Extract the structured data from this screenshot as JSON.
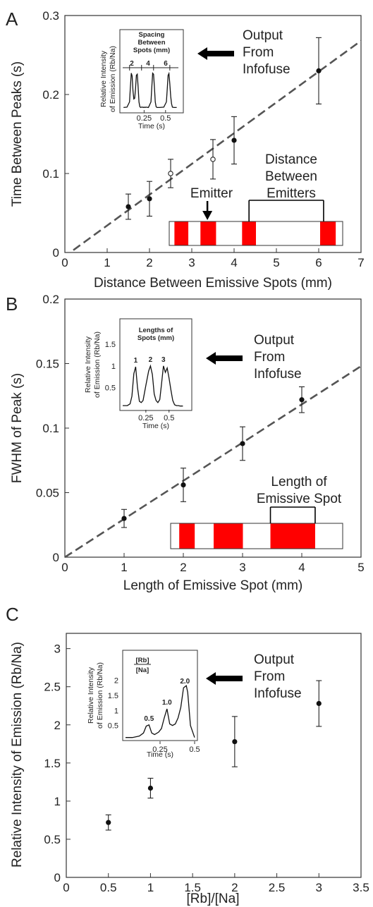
{
  "chart_data": [
    {
      "panel_label": "A",
      "type": "scatter",
      "xlabel": "Distance Between Emissive Spots (mm)",
      "ylabel": "Time Between Peaks (s)",
      "xlim": [
        0,
        7
      ],
      "ylim": [
        0,
        0.3
      ],
      "xticks": [
        "0",
        "1",
        "2",
        "3",
        "4",
        "5",
        "6",
        "7"
      ],
      "yticks": [
        "0",
        "0.1",
        "0.2",
        "0.3"
      ],
      "series": [
        {
          "marker": "filled",
          "x": [
            1.5,
            2,
            4,
            6
          ],
          "y": [
            0.058,
            0.068,
            0.142,
            0.23
          ],
          "err": [
            0.016,
            0.022,
            0.03,
            0.042
          ]
        },
        {
          "marker": "open",
          "x": [
            2.5,
            3.5
          ],
          "y": [
            0.1,
            0.118
          ],
          "err": [
            0.018,
            0.025
          ]
        }
      ],
      "fit_line": {
        "x": [
          0.2,
          7
        ],
        "y": [
          0.003,
          0.268
        ]
      },
      "annotations": {
        "arrow": "Output From Infofuse",
        "emitter": "Emitter",
        "distance": "Distance Between Emitters"
      },
      "strip": {
        "min": 0,
        "max": 10,
        "segments": [
          [
            0.3,
            1.1
          ],
          [
            1.8,
            2.7
          ],
          [
            4.2,
            5.0
          ],
          [
            8.7,
            9.6
          ]
        ],
        "emitter_at": 2.2,
        "bracket": [
          4.6,
          8.9
        ]
      },
      "inset": {
        "title": "Spacing Between Spots (mm)",
        "ylabel": "Relative Intensity of Emission (Rb/Na)",
        "xlabel": "Time (s)",
        "xticks": [
          "0.25",
          "0.5"
        ],
        "xlim": [
          0,
          0.65
        ],
        "peak_labels": [
          "2",
          "4",
          "6"
        ],
        "peak_marks": [
          0.08,
          0.22,
          0.36,
          0.55
        ],
        "trace_x": [
          0.01,
          0.05,
          0.08,
          0.09,
          0.1,
          0.11,
          0.12,
          0.13,
          0.14,
          0.15,
          0.16,
          0.17,
          0.18,
          0.19,
          0.2,
          0.21,
          0.22,
          0.23,
          0.24,
          0.25,
          0.26,
          0.27,
          0.3,
          0.33,
          0.34,
          0.35,
          0.36,
          0.37,
          0.38,
          0.39,
          0.4,
          0.43,
          0.48,
          0.51,
          0.52,
          0.53,
          0.54,
          0.55,
          0.56,
          0.57,
          0.58,
          0.6,
          0.63
        ],
        "trace_y": [
          0.05,
          0.06,
          0.2,
          0.6,
          0.98,
          0.9,
          0.5,
          0.28,
          0.3,
          0.55,
          0.92,
          0.95,
          0.6,
          0.2,
          0.07,
          0.05,
          0.06,
          0.06,
          0.05,
          0.06,
          0.05,
          0.06,
          0.05,
          0.2,
          0.6,
          0.98,
          0.95,
          0.6,
          0.2,
          0.07,
          0.05,
          0.05,
          0.06,
          0.2,
          0.55,
          0.92,
          0.97,
          0.7,
          0.35,
          0.15,
          0.06,
          0.05,
          0.05
        ]
      }
    },
    {
      "panel_label": "B",
      "type": "scatter",
      "xlabel": "Length of Emissive Spot (mm)",
      "ylabel": "FWHM of Peak (s)",
      "xlim": [
        0,
        5
      ],
      "ylim": [
        0,
        0.2
      ],
      "xticks": [
        "0",
        "1",
        "2",
        "3",
        "4",
        "5"
      ],
      "yticks": [
        "0",
        "0.05",
        "0.1",
        "0.15",
        "0.2"
      ],
      "series": [
        {
          "marker": "filled",
          "x": [
            1,
            2,
            3,
            4
          ],
          "y": [
            0.03,
            0.056,
            0.088,
            0.122
          ],
          "err": [
            0.007,
            0.013,
            0.013,
            0.01
          ]
        }
      ],
      "fit_line": {
        "x": [
          0,
          5
        ],
        "y": [
          0,
          0.148
        ]
      },
      "annotations": {
        "arrow": "Output From Infofuse",
        "length": "Length of Emissive Spot"
      },
      "strip": {
        "min": 0,
        "max": 10,
        "segments": [
          [
            0.5,
            1.4
          ],
          [
            2.5,
            4.2
          ],
          [
            5.8,
            8.4
          ]
        ],
        "bracket": [
          5.8,
          8.4
        ]
      },
      "inset": {
        "title": "Lengths of Spots (mm)",
        "ylabel": "Relative Intensity of Emission (Rb/Na)",
        "xlabel": "Time (s)",
        "yticks": [
          "0.5",
          "1",
          "1.5"
        ],
        "ylim": [
          0,
          1.6
        ],
        "xticks": [
          "0.25",
          "0.5"
        ],
        "xlim": [
          0,
          0.7
        ],
        "peak_labels": [
          "1",
          "2",
          "3"
        ],
        "trace_x": [
          0,
          0.05,
          0.08,
          0.1,
          0.12,
          0.14,
          0.16,
          0.18,
          0.2,
          0.22,
          0.25,
          0.28,
          0.3,
          0.32,
          0.34,
          0.36,
          0.38,
          0.4,
          0.42,
          0.44,
          0.46,
          0.48,
          0.5,
          0.52,
          0.54,
          0.56,
          0.58,
          0.6,
          0.62,
          0.65
        ],
        "trace_y": [
          0.08,
          0.08,
          0.12,
          0.3,
          0.82,
          0.98,
          0.5,
          0.18,
          0.15,
          0.2,
          0.55,
          0.88,
          1.0,
          0.8,
          0.35,
          0.2,
          0.15,
          0.22,
          0.6,
          1.0,
          0.85,
          0.95,
          0.72,
          0.45,
          0.2,
          0.1,
          0.08,
          0.08,
          0.07,
          0.07
        ]
      }
    },
    {
      "panel_label": "C",
      "type": "scatter",
      "xlabel": "[Rb]/[Na]",
      "ylabel": "Relative Intensity of Emission (Rb/Na)",
      "xlim": [
        0,
        3.5
      ],
      "ylim": [
        0,
        3.2
      ],
      "xticks": [
        "0",
        "0.5",
        "1",
        "1.5",
        "2",
        "2.5",
        "3",
        "3.5"
      ],
      "yticks": [
        "0",
        "0.5",
        "1",
        "1.5",
        "2",
        "2.5",
        "3"
      ],
      "series": [
        {
          "marker": "filled",
          "x": [
            0.5,
            1,
            2,
            3
          ],
          "y": [
            0.72,
            1.17,
            1.78,
            2.28
          ],
          "err": [
            0.1,
            0.13,
            0.33,
            0.3
          ]
        }
      ],
      "annotations": {
        "arrow": "Output From Infofuse"
      },
      "inset": {
        "title_numerator": "[Rb]",
        "title_denominator": "[Na]",
        "ylabel": "Relative Intensity of Emission (Rb/Na)",
        "xlabel": "Time (s)",
        "yticks": [
          "0.5",
          "1",
          "1.5",
          "2"
        ],
        "ylim": [
          0,
          2.2
        ],
        "xticks": [
          "0.25",
          "0.5"
        ],
        "xlim": [
          0,
          0.5
        ],
        "peak_labels": [
          "0.5",
          "1.0",
          "2.0"
        ],
        "trace_x": [
          0,
          0.05,
          0.1,
          0.13,
          0.15,
          0.17,
          0.19,
          0.21,
          0.24,
          0.26,
          0.28,
          0.3,
          0.32,
          0.34,
          0.36,
          0.38,
          0.4,
          0.42,
          0.44,
          0.45,
          0.47,
          0.5
        ],
        "trace_y": [
          0.1,
          0.1,
          0.15,
          0.25,
          0.48,
          0.52,
          0.25,
          0.2,
          0.28,
          0.4,
          0.75,
          1.05,
          0.55,
          0.5,
          0.55,
          0.75,
          1.1,
          1.75,
          1.82,
          1.6,
          0.5,
          0.1
        ]
      }
    }
  ]
}
